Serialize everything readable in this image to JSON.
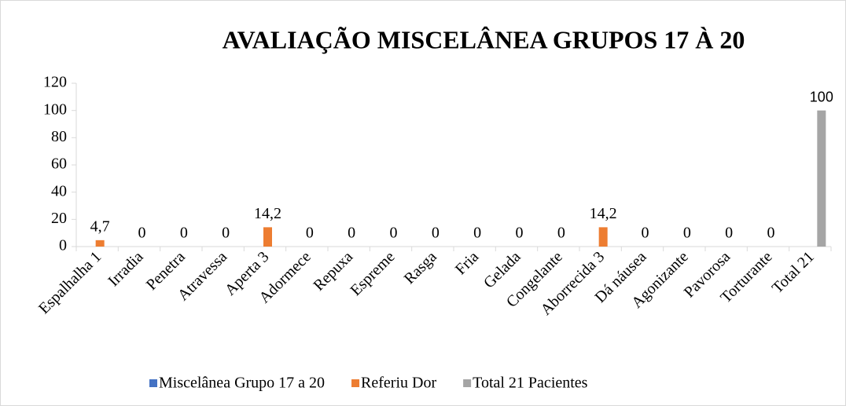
{
  "chart_data": {
    "type": "bar",
    "title": "AVALIAÇÃO MISCELÂNEA GRUPOS 17 À 20",
    "categories": [
      "Espalhalha 1",
      "Irradia",
      "Penetra",
      "Atravessa",
      "Aperta 3",
      "Adormece",
      "Repuxa",
      "Espreme",
      "Rasga",
      "Fria",
      "Gelada",
      "Congelante",
      "Aborrecida 3",
      "Dá náusea",
      "Agonizante",
      "Pavorosa",
      "Torturante",
      "Total 21"
    ],
    "series": [
      {
        "name": "Miscelânea Grupo 17 a 20",
        "color": "#4472c4",
        "values": [
          null,
          null,
          null,
          null,
          null,
          null,
          null,
          null,
          null,
          null,
          null,
          null,
          null,
          null,
          null,
          null,
          null,
          null
        ]
      },
      {
        "name": "Referiu Dor",
        "color": "#ed7d31",
        "values": [
          4.7,
          0,
          0,
          0,
          14.2,
          0,
          0,
          0,
          0,
          0,
          0,
          0,
          14.2,
          0,
          0,
          0,
          0,
          null
        ],
        "value_labels": [
          "4,7",
          "0",
          "0",
          "0",
          "14,2",
          "0",
          "0",
          "0",
          "0",
          "0",
          "0",
          "0",
          "14,2",
          "0",
          "0",
          "0",
          "0",
          null
        ]
      },
      {
        "name": "Total 21 Pacientes",
        "color": "#a5a5a5",
        "values": [
          null,
          null,
          null,
          null,
          null,
          null,
          null,
          null,
          null,
          null,
          null,
          null,
          null,
          null,
          null,
          null,
          null,
          100
        ]
      }
    ],
    "ylim": [
      0,
      120
    ],
    "yticks": [
      0,
      20,
      40,
      60,
      80,
      100,
      120
    ],
    "legend": "bottom"
  }
}
